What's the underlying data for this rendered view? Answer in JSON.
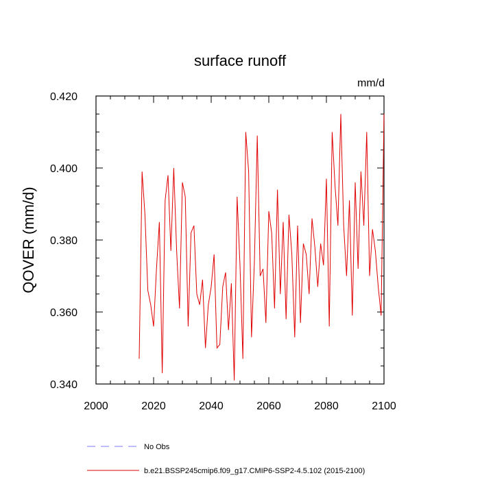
{
  "chart_data": {
    "type": "line",
    "title": "surface runoff",
    "units": "mm/d",
    "xlabel": "",
    "ylabel": "QOVER  (mm/d)",
    "xlim": [
      2000,
      2100
    ],
    "ylim": [
      0.34,
      0.42
    ],
    "xticks": [
      2000,
      2020,
      2040,
      2060,
      2080,
      2100
    ],
    "xtick_labels": [
      "2000",
      "2020",
      "2040",
      "2060",
      "2080",
      "2100"
    ],
    "yticks": [
      0.34,
      0.36,
      0.38,
      0.4,
      0.42
    ],
    "ytick_labels": [
      "0.340",
      "0.360",
      "0.380",
      "0.400",
      "0.420"
    ],
    "grid": false,
    "legend": [
      {
        "label": "No Obs",
        "style": "dashed",
        "color": "#7a7aff"
      },
      {
        "label": "b.e21.BSSP245cmip6.f09_g17.CMIP6-SSP2-4.5.102 (2015-2100)",
        "style": "solid",
        "color": "#e00000"
      }
    ],
    "series": [
      {
        "name": "b.e21.BSSP245cmip6.f09_g17.CMIP6-SSP2-4.5.102 (2015-2100)",
        "color": "#e00000",
        "x": [
          2015,
          2016,
          2017,
          2018,
          2019,
          2020,
          2021,
          2022,
          2023,
          2024,
          2025,
          2026,
          2027,
          2028,
          2029,
          2030,
          2031,
          2032,
          2033,
          2034,
          2035,
          2036,
          2037,
          2038,
          2039,
          2040,
          2041,
          2042,
          2043,
          2044,
          2045,
          2046,
          2047,
          2048,
          2049,
          2050,
          2051,
          2052,
          2053,
          2054,
          2055,
          2056,
          2057,
          2058,
          2059,
          2060,
          2061,
          2062,
          2063,
          2064,
          2065,
          2066,
          2067,
          2068,
          2069,
          2070,
          2071,
          2072,
          2073,
          2074,
          2075,
          2076,
          2077,
          2078,
          2079,
          2080,
          2081,
          2082,
          2083,
          2084,
          2085,
          2086,
          2087,
          2088,
          2089,
          2090,
          2091,
          2092,
          2093,
          2094,
          2095,
          2096,
          2097,
          2098,
          2099,
          2100
        ],
        "values": [
          0.347,
          0.399,
          0.387,
          0.366,
          0.362,
          0.356,
          0.372,
          0.385,
          0.343,
          0.391,
          0.398,
          0.377,
          0.4,
          0.377,
          0.361,
          0.396,
          0.392,
          0.356,
          0.382,
          0.384,
          0.365,
          0.362,
          0.369,
          0.35,
          0.362,
          0.367,
          0.376,
          0.35,
          0.351,
          0.367,
          0.371,
          0.355,
          0.368,
          0.341,
          0.392,
          0.373,
          0.347,
          0.41,
          0.399,
          0.353,
          0.374,
          0.409,
          0.37,
          0.372,
          0.357,
          0.388,
          0.382,
          0.361,
          0.394,
          0.365,
          0.385,
          0.358,
          0.387,
          0.376,
          0.353,
          0.384,
          0.357,
          0.379,
          0.376,
          0.365,
          0.386,
          0.378,
          0.367,
          0.379,
          0.373,
          0.397,
          0.356,
          0.41,
          0.395,
          0.384,
          0.415,
          0.384,
          0.37,
          0.391,
          0.359,
          0.396,
          0.372,
          0.399,
          0.384,
          0.41,
          0.37,
          0.383,
          0.377,
          0.367,
          0.359,
          0.415
        ]
      }
    ]
  }
}
